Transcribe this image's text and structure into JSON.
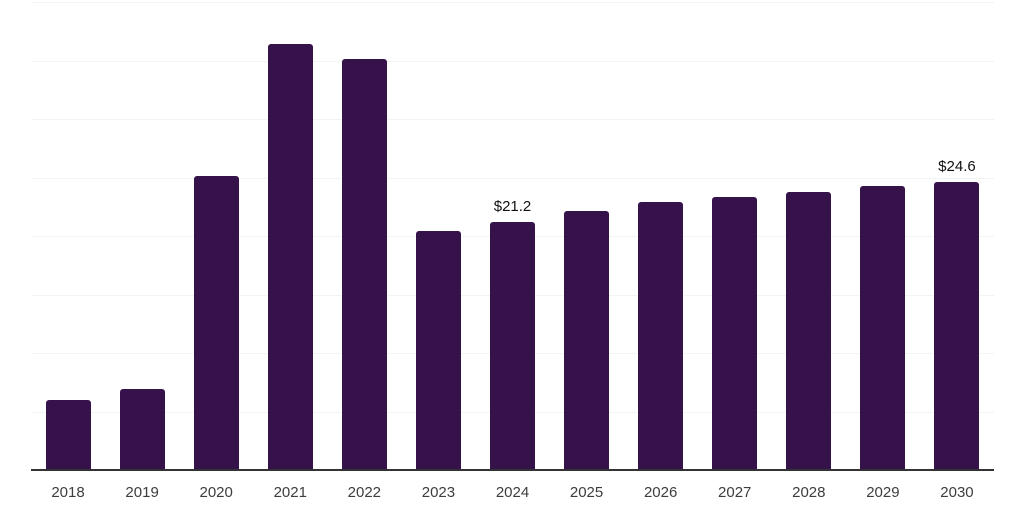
{
  "chart": {
    "colors": {
      "bar": "#36124a",
      "axis": "#333333",
      "gridline": "#f3f3f3",
      "tick_label": "#3d3d3d",
      "data_label": "#111111"
    }
  },
  "chart_data": {
    "type": "bar",
    "title": "",
    "xlabel": "",
    "ylabel": "",
    "categories": [
      "2018",
      "2019",
      "2020",
      "2021",
      "2022",
      "2023",
      "2024",
      "2025",
      "2026",
      "2027",
      "2028",
      "2029",
      "2030"
    ],
    "values": [
      6.0,
      6.9,
      25.1,
      36.4,
      35.1,
      20.4,
      21.2,
      22.1,
      22.9,
      23.3,
      23.8,
      24.3,
      24.6
    ],
    "data_labels": {
      "2024": "$21.2",
      "2030": "$24.6"
    },
    "ylim": [
      0,
      40
    ],
    "gridline_step": 5,
    "grid": "horizontal",
    "legend": "none",
    "y_tick_labels_visible": false
  }
}
